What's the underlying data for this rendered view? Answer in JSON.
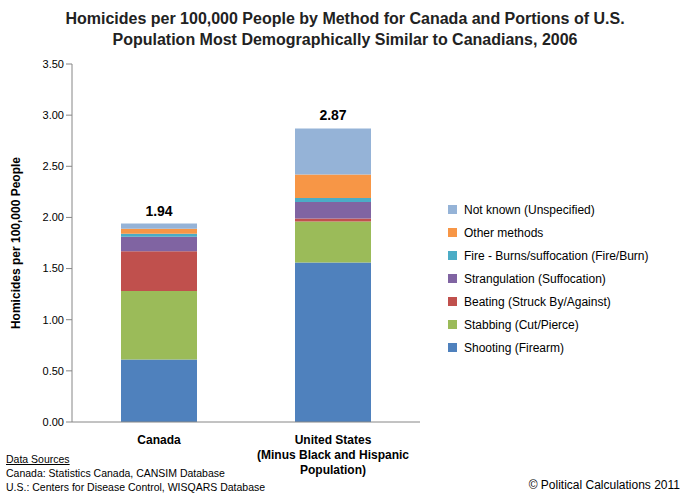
{
  "chart_data": {
    "type": "bar",
    "title": "Homicides per 100,000 People by Method for Canada and Portions of U.S. Population Most Demographically Similar to Canadians, 2006",
    "y_label": "Homicides per 100,000 People",
    "categories": [
      "Canada",
      "United States (Minus Black and Hispanic Population)"
    ],
    "series": [
      {
        "name": "Shooting (Firearm)",
        "color": "#4F81BD",
        "values": [
          0.61,
          1.56
        ]
      },
      {
        "name": "Stabbing (Cut/Pierce)",
        "color": "#9BBB59",
        "values": [
          0.67,
          0.4
        ]
      },
      {
        "name": "Beating (Struck By/Against)",
        "color": "#C0504D",
        "values": [
          0.39,
          0.03
        ]
      },
      {
        "name": "Strangulation (Suffocation)",
        "color": "#8064A2",
        "values": [
          0.14,
          0.16
        ]
      },
      {
        "name": "Fire - Burns/suffocation (Fire/Burn)",
        "color": "#4BACC6",
        "values": [
          0.03,
          0.04
        ]
      },
      {
        "name": "Other methods",
        "color": "#F79646",
        "values": [
          0.05,
          0.23
        ]
      },
      {
        "name": "Not known (Unspecified)",
        "color": "#95B3D7",
        "values": [
          0.05,
          0.45
        ]
      }
    ],
    "totals": [
      1.94,
      2.87
    ],
    "stacked": true,
    "grid": false,
    "legend": "right",
    "ylim": [
      0,
      3.5
    ],
    "yticks": [
      {
        "value": 0,
        "label": "0.00"
      },
      {
        "value": 0.5,
        "label": "0.50"
      },
      {
        "value": 1,
        "label": "1.00"
      },
      {
        "value": 1.5,
        "label": "1.50"
      },
      {
        "value": 2,
        "label": "2.00"
      },
      {
        "value": 2.5,
        "label": "2.50"
      },
      {
        "value": 3,
        "label": "3.00"
      },
      {
        "value": 3.5,
        "label": "3.50"
      }
    ],
    "data_sources_title": "Data Sources",
    "data_sources": [
      "Canada: Statistics Canada, CANSIM Database",
      "U.S.: Centers for Disease Control, WISQARS Database"
    ],
    "copyright": "© Political Calculations 2011"
  }
}
